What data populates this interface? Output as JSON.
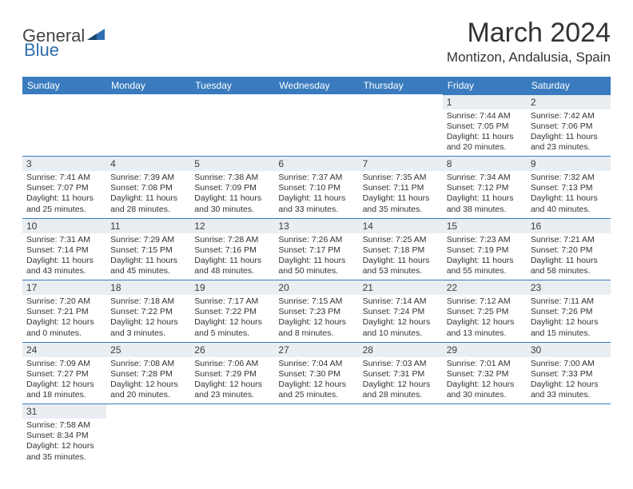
{
  "logo": {
    "part1": "General",
    "part2": "Blue"
  },
  "title": "March 2024",
  "location": "Montizon, Andalusia, Spain",
  "colors": {
    "header_bg": "#3a7bbf",
    "header_text": "#ffffff",
    "daynum_bg": "#e9eef3",
    "border": "#3a7bbf",
    "logo_blue": "#2f6fb0"
  },
  "weekdays": [
    "Sunday",
    "Monday",
    "Tuesday",
    "Wednesday",
    "Thursday",
    "Friday",
    "Saturday"
  ],
  "days": [
    {
      "n": "",
      "sunrise": "",
      "sunset": "",
      "daylight": ""
    },
    {
      "n": "",
      "sunrise": "",
      "sunset": "",
      "daylight": ""
    },
    {
      "n": "",
      "sunrise": "",
      "sunset": "",
      "daylight": ""
    },
    {
      "n": "",
      "sunrise": "",
      "sunset": "",
      "daylight": ""
    },
    {
      "n": "",
      "sunrise": "",
      "sunset": "",
      "daylight": ""
    },
    {
      "n": "1",
      "sunrise": "Sunrise: 7:44 AM",
      "sunset": "Sunset: 7:05 PM",
      "daylight": "Daylight: 11 hours and 20 minutes."
    },
    {
      "n": "2",
      "sunrise": "Sunrise: 7:42 AM",
      "sunset": "Sunset: 7:06 PM",
      "daylight": "Daylight: 11 hours and 23 minutes."
    },
    {
      "n": "3",
      "sunrise": "Sunrise: 7:41 AM",
      "sunset": "Sunset: 7:07 PM",
      "daylight": "Daylight: 11 hours and 25 minutes."
    },
    {
      "n": "4",
      "sunrise": "Sunrise: 7:39 AM",
      "sunset": "Sunset: 7:08 PM",
      "daylight": "Daylight: 11 hours and 28 minutes."
    },
    {
      "n": "5",
      "sunrise": "Sunrise: 7:38 AM",
      "sunset": "Sunset: 7:09 PM",
      "daylight": "Daylight: 11 hours and 30 minutes."
    },
    {
      "n": "6",
      "sunrise": "Sunrise: 7:37 AM",
      "sunset": "Sunset: 7:10 PM",
      "daylight": "Daylight: 11 hours and 33 minutes."
    },
    {
      "n": "7",
      "sunrise": "Sunrise: 7:35 AM",
      "sunset": "Sunset: 7:11 PM",
      "daylight": "Daylight: 11 hours and 35 minutes."
    },
    {
      "n": "8",
      "sunrise": "Sunrise: 7:34 AM",
      "sunset": "Sunset: 7:12 PM",
      "daylight": "Daylight: 11 hours and 38 minutes."
    },
    {
      "n": "9",
      "sunrise": "Sunrise: 7:32 AM",
      "sunset": "Sunset: 7:13 PM",
      "daylight": "Daylight: 11 hours and 40 minutes."
    },
    {
      "n": "10",
      "sunrise": "Sunrise: 7:31 AM",
      "sunset": "Sunset: 7:14 PM",
      "daylight": "Daylight: 11 hours and 43 minutes."
    },
    {
      "n": "11",
      "sunrise": "Sunrise: 7:29 AM",
      "sunset": "Sunset: 7:15 PM",
      "daylight": "Daylight: 11 hours and 45 minutes."
    },
    {
      "n": "12",
      "sunrise": "Sunrise: 7:28 AM",
      "sunset": "Sunset: 7:16 PM",
      "daylight": "Daylight: 11 hours and 48 minutes."
    },
    {
      "n": "13",
      "sunrise": "Sunrise: 7:26 AM",
      "sunset": "Sunset: 7:17 PM",
      "daylight": "Daylight: 11 hours and 50 minutes."
    },
    {
      "n": "14",
      "sunrise": "Sunrise: 7:25 AM",
      "sunset": "Sunset: 7:18 PM",
      "daylight": "Daylight: 11 hours and 53 minutes."
    },
    {
      "n": "15",
      "sunrise": "Sunrise: 7:23 AM",
      "sunset": "Sunset: 7:19 PM",
      "daylight": "Daylight: 11 hours and 55 minutes."
    },
    {
      "n": "16",
      "sunrise": "Sunrise: 7:21 AM",
      "sunset": "Sunset: 7:20 PM",
      "daylight": "Daylight: 11 hours and 58 minutes."
    },
    {
      "n": "17",
      "sunrise": "Sunrise: 7:20 AM",
      "sunset": "Sunset: 7:21 PM",
      "daylight": "Daylight: 12 hours and 0 minutes."
    },
    {
      "n": "18",
      "sunrise": "Sunrise: 7:18 AM",
      "sunset": "Sunset: 7:22 PM",
      "daylight": "Daylight: 12 hours and 3 minutes."
    },
    {
      "n": "19",
      "sunrise": "Sunrise: 7:17 AM",
      "sunset": "Sunset: 7:22 PM",
      "daylight": "Daylight: 12 hours and 5 minutes."
    },
    {
      "n": "20",
      "sunrise": "Sunrise: 7:15 AM",
      "sunset": "Sunset: 7:23 PM",
      "daylight": "Daylight: 12 hours and 8 minutes."
    },
    {
      "n": "21",
      "sunrise": "Sunrise: 7:14 AM",
      "sunset": "Sunset: 7:24 PM",
      "daylight": "Daylight: 12 hours and 10 minutes."
    },
    {
      "n": "22",
      "sunrise": "Sunrise: 7:12 AM",
      "sunset": "Sunset: 7:25 PM",
      "daylight": "Daylight: 12 hours and 13 minutes."
    },
    {
      "n": "23",
      "sunrise": "Sunrise: 7:11 AM",
      "sunset": "Sunset: 7:26 PM",
      "daylight": "Daylight: 12 hours and 15 minutes."
    },
    {
      "n": "24",
      "sunrise": "Sunrise: 7:09 AM",
      "sunset": "Sunset: 7:27 PM",
      "daylight": "Daylight: 12 hours and 18 minutes."
    },
    {
      "n": "25",
      "sunrise": "Sunrise: 7:08 AM",
      "sunset": "Sunset: 7:28 PM",
      "daylight": "Daylight: 12 hours and 20 minutes."
    },
    {
      "n": "26",
      "sunrise": "Sunrise: 7:06 AM",
      "sunset": "Sunset: 7:29 PM",
      "daylight": "Daylight: 12 hours and 23 minutes."
    },
    {
      "n": "27",
      "sunrise": "Sunrise: 7:04 AM",
      "sunset": "Sunset: 7:30 PM",
      "daylight": "Daylight: 12 hours and 25 minutes."
    },
    {
      "n": "28",
      "sunrise": "Sunrise: 7:03 AM",
      "sunset": "Sunset: 7:31 PM",
      "daylight": "Daylight: 12 hours and 28 minutes."
    },
    {
      "n": "29",
      "sunrise": "Sunrise: 7:01 AM",
      "sunset": "Sunset: 7:32 PM",
      "daylight": "Daylight: 12 hours and 30 minutes."
    },
    {
      "n": "30",
      "sunrise": "Sunrise: 7:00 AM",
      "sunset": "Sunset: 7:33 PM",
      "daylight": "Daylight: 12 hours and 33 minutes."
    },
    {
      "n": "31",
      "sunrise": "Sunrise: 7:58 AM",
      "sunset": "Sunset: 8:34 PM",
      "daylight": "Daylight: 12 hours and 35 minutes."
    },
    {
      "n": "",
      "sunrise": "",
      "sunset": "",
      "daylight": ""
    },
    {
      "n": "",
      "sunrise": "",
      "sunset": "",
      "daylight": ""
    },
    {
      "n": "",
      "sunrise": "",
      "sunset": "",
      "daylight": ""
    },
    {
      "n": "",
      "sunrise": "",
      "sunset": "",
      "daylight": ""
    },
    {
      "n": "",
      "sunrise": "",
      "sunset": "",
      "daylight": ""
    },
    {
      "n": "",
      "sunrise": "",
      "sunset": "",
      "daylight": ""
    }
  ]
}
